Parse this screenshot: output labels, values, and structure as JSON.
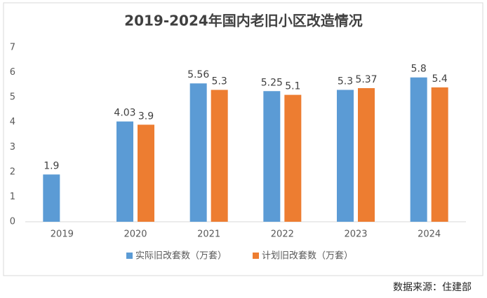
{
  "chart_data": {
    "type": "bar",
    "title": "2019-2024年国内老旧小区改造情况",
    "categories": [
      "2019",
      "2020",
      "2021",
      "2022",
      "2023",
      "2024"
    ],
    "series": [
      {
        "name": "实际旧改套数（万套）",
        "color": "#5b9bd5",
        "values": [
          1.9,
          4.03,
          5.56,
          5.25,
          5.3,
          5.8
        ]
      },
      {
        "name": "计划旧改套数（万套）",
        "color": "#ed7d31",
        "values": [
          null,
          3.9,
          5.3,
          5.1,
          5.37,
          5.4
        ]
      }
    ],
    "ylim": [
      0,
      7
    ],
    "yticks": [
      0,
      1,
      2,
      3,
      4,
      5,
      6,
      7
    ],
    "grid": false,
    "legend": "bottom",
    "source": "数据来源：住建部"
  }
}
